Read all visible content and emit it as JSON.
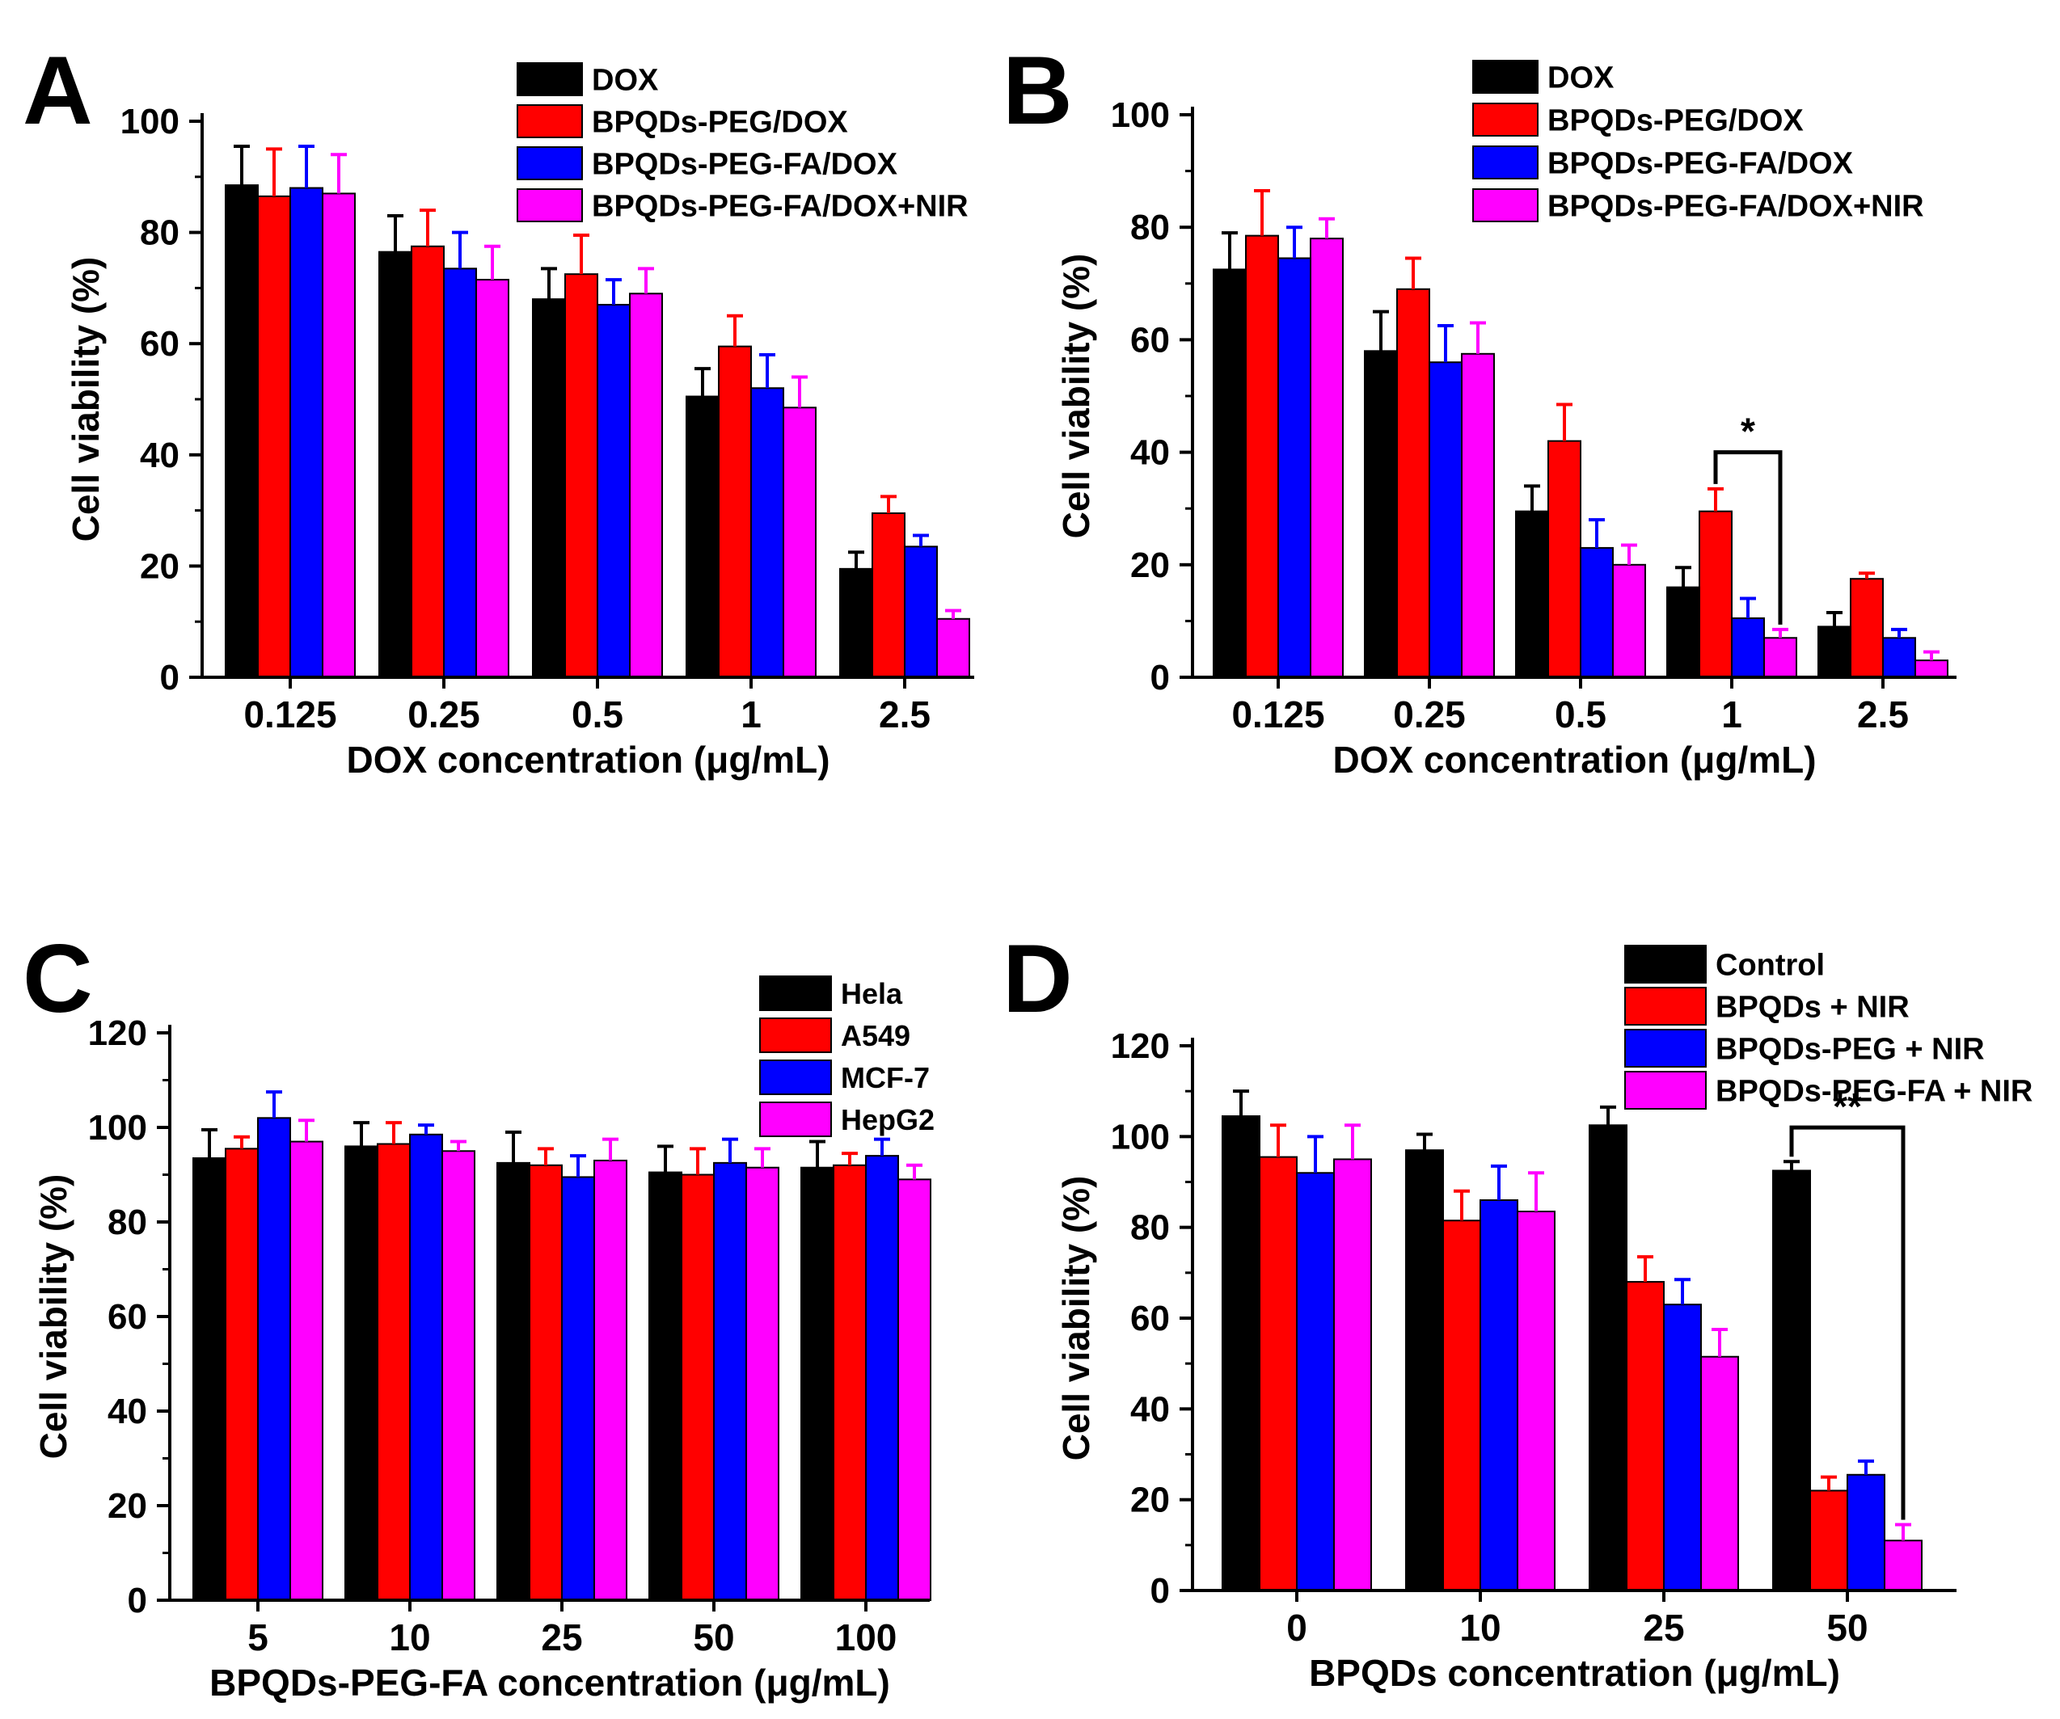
{
  "figure": {
    "colors": {
      "black": "#000000",
      "red": "#ff0000",
      "blue": "#0000ff",
      "magenta": "#ff00ff"
    },
    "panels": [
      "A",
      "B",
      "C",
      "D"
    ]
  },
  "chart_data": [
    {
      "panel": "A",
      "type": "bar",
      "xlabel": "DOX concentration (μg/mL)",
      "ylabel": "Cell viability (%)",
      "ylim": [
        0,
        100
      ],
      "yticks": [
        0,
        20,
        40,
        60,
        80,
        100
      ],
      "categories": [
        "0.125",
        "0.25",
        "0.5",
        "1",
        "2.5"
      ],
      "legend_position": "top-right",
      "series": [
        {
          "name": "DOX",
          "color": "#000000",
          "values": [
            88.5,
            76.5,
            68,
            50.5,
            19.5
          ],
          "errors": [
            7,
            6.5,
            5.5,
            5,
            3
          ]
        },
        {
          "name": "BPQDs-PEG/DOX",
          "color": "#ff0000",
          "values": [
            86.5,
            77.5,
            72.5,
            59.5,
            29.5
          ],
          "errors": [
            8.5,
            6.5,
            7,
            5.5,
            3
          ]
        },
        {
          "name": "BPQDs-PEG-FA/DOX",
          "color": "#0000ff",
          "values": [
            88,
            73.5,
            67,
            52,
            23.5
          ],
          "errors": [
            7.5,
            6.5,
            4.5,
            6,
            2
          ]
        },
        {
          "name": "BPQDs-PEG-FA/DOX+NIR",
          "color": "#ff00ff",
          "values": [
            87,
            71.5,
            69,
            48.5,
            10.5
          ],
          "errors": [
            7,
            6,
            4.5,
            5.5,
            1.5
          ]
        }
      ],
      "annotations": []
    },
    {
      "panel": "B",
      "type": "bar",
      "xlabel": "DOX concentration (μg/mL)",
      "ylabel": "Cell viability (%)",
      "ylim": [
        0,
        100
      ],
      "yticks": [
        0,
        20,
        40,
        60,
        80,
        100
      ],
      "categories": [
        "0.125",
        "0.25",
        "0.5",
        "1",
        "2.5"
      ],
      "legend_position": "top-right",
      "series": [
        {
          "name": "DOX",
          "color": "#000000",
          "values": [
            72.5,
            58,
            29.5,
            16,
            9
          ],
          "errors": [
            6.5,
            7,
            4.5,
            3.5,
            2.5
          ]
        },
        {
          "name": "BPQDs-PEG/DOX",
          "color": "#ff0000",
          "values": [
            78.5,
            69,
            42,
            29.5,
            17.5
          ],
          "errors": [
            8,
            5.5,
            6.5,
            4,
            1
          ]
        },
        {
          "name": "BPQDs-PEG-FA/DOX",
          "color": "#0000ff",
          "values": [
            74.5,
            56,
            23,
            10.5,
            7
          ],
          "errors": [
            5.5,
            6.5,
            5,
            3.5,
            1.5
          ]
        },
        {
          "name": "BPQDs-PEG-FA/DOX+NIR",
          "color": "#ff00ff",
          "values": [
            78,
            57.5,
            20,
            7,
            3
          ],
          "errors": [
            3.5,
            5.5,
            3.5,
            1.5,
            1.5
          ]
        }
      ],
      "annotations": [
        {
          "text": "*",
          "category": "1",
          "from_series": 1,
          "to_series": 3,
          "level": 40
        }
      ]
    },
    {
      "panel": "C",
      "type": "bar",
      "xlabel": "BPQDs-PEG-FA concentration (μg/mL)",
      "ylabel": "Cell viability (%)",
      "ylim": [
        0,
        120
      ],
      "yticks": [
        0,
        20,
        40,
        60,
        80,
        100,
        120
      ],
      "categories": [
        "5",
        "10",
        "25",
        "50",
        "100"
      ],
      "legend_position": "top-right",
      "series": [
        {
          "name": "Hela",
          "color": "#000000",
          "values": [
            93.5,
            96,
            92.5,
            90.5,
            91.5
          ],
          "errors": [
            6,
            5,
            6.5,
            5.5,
            5.5
          ]
        },
        {
          "name": "A549",
          "color": "#ff0000",
          "values": [
            95.5,
            96.5,
            92,
            90,
            92
          ],
          "errors": [
            2.5,
            4.5,
            3.5,
            5.5,
            2.5
          ]
        },
        {
          "name": "MCF-7",
          "color": "#0000ff",
          "values": [
            102,
            98.5,
            89.5,
            92.5,
            94
          ],
          "errors": [
            5.5,
            2,
            4.5,
            5,
            3.5
          ]
        },
        {
          "name": "HepG2",
          "color": "#ff00ff",
          "values": [
            97,
            95,
            93,
            91.5,
            89
          ],
          "errors": [
            4.5,
            2,
            4.5,
            4,
            3
          ]
        }
      ],
      "annotations": []
    },
    {
      "panel": "D",
      "type": "bar",
      "xlabel": "BPQDs concentration (μg/mL)",
      "ylabel": "Cell viability (%)",
      "ylim": [
        0,
        120
      ],
      "yticks": [
        0,
        20,
        40,
        60,
        80,
        100,
        120
      ],
      "categories": [
        "0",
        "10",
        "25",
        "50"
      ],
      "legend_position": "top-right",
      "series": [
        {
          "name": "Control",
          "color": "#000000",
          "values": [
            104.5,
            97,
            102.5,
            92.5
          ],
          "errors": [
            5.5,
            3.5,
            4,
            2
          ]
        },
        {
          "name": "BPQDs + NIR",
          "color": "#ff0000",
          "values": [
            95.5,
            81.5,
            68,
            22
          ],
          "errors": [
            7,
            6.5,
            5.5,
            3
          ]
        },
        {
          "name": "BPQDs-PEG + NIR",
          "color": "#0000ff",
          "values": [
            92,
            86,
            63,
            25.5
          ],
          "errors": [
            8,
            7.5,
            5.5,
            3
          ]
        },
        {
          "name": "BPQDs-PEG-FA + NIR",
          "color": "#ff00ff",
          "values": [
            95,
            83.5,
            51.5,
            11
          ],
          "errors": [
            7.5,
            8.5,
            6,
            3.5
          ]
        }
      ],
      "annotations": [
        {
          "text": "**",
          "category": "50",
          "from_series": 0,
          "to_series": 3,
          "level": 102
        }
      ]
    }
  ]
}
